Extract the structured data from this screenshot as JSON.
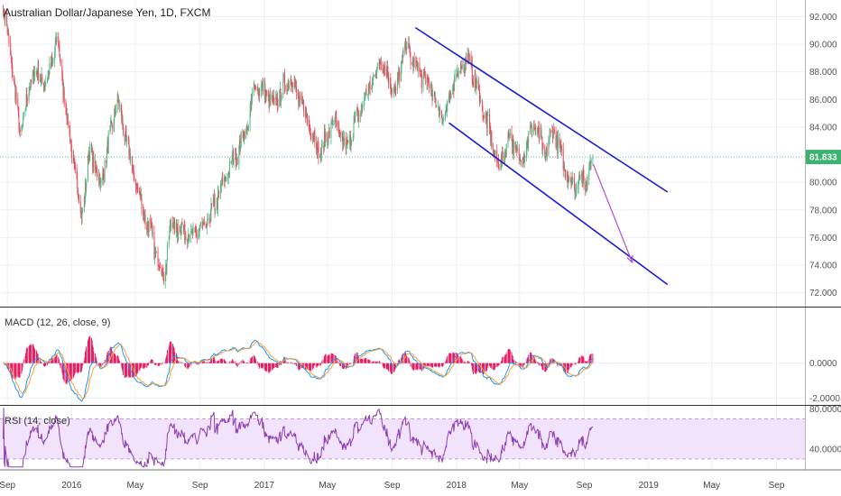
{
  "chart_data": [
    {
      "pane": "price",
      "type": "candlestick",
      "title": "Australian Dollar/Japanese Yen, 1D, FXCM",
      "ylim": [
        71.0,
        93.2
      ],
      "yticks": [
        72,
        74,
        76,
        78,
        80,
        82,
        84,
        86,
        88,
        90,
        92
      ],
      "ytick_labels": [
        "72.000",
        "74.000",
        "76.000",
        "78.000",
        "80.000",
        "84.000",
        "86.000",
        "88.000",
        "90.000",
        "92.000"
      ],
      "ytick_values": [
        72,
        74,
        76,
        78,
        80,
        84,
        86,
        88,
        90,
        92
      ],
      "last_price": 81.833,
      "last_price_label": "81.833",
      "anchors": [
        [
          "2015-08-24",
          92.6
        ],
        [
          "2015-09-08",
          89.0
        ],
        [
          "2015-09-25",
          83.5
        ],
        [
          "2015-10-20",
          88.0
        ],
        [
          "2015-11-15",
          87.2
        ],
        [
          "2015-12-05",
          90.5
        ],
        [
          "2015-12-22",
          85.0
        ],
        [
          "2016-01-20",
          77.5
        ],
        [
          "2016-02-05",
          82.5
        ],
        [
          "2016-02-25",
          79.8
        ],
        [
          "2016-03-28",
          86.0
        ],
        [
          "2016-05-01",
          80.0
        ],
        [
          "2016-06-24",
          73.0
        ],
        [
          "2016-07-08",
          77.0
        ],
        [
          "2016-08-15",
          76.2
        ],
        [
          "2016-09-12",
          76.8
        ],
        [
          "2016-10-18",
          80.2
        ],
        [
          "2016-11-30",
          84.0
        ],
        [
          "2016-12-15",
          87.0
        ],
        [
          "2017-01-20",
          85.8
        ],
        [
          "2017-02-20",
          87.5
        ],
        [
          "2017-03-25",
          84.5
        ],
        [
          "2017-04-17",
          82.0
        ],
        [
          "2017-05-12",
          84.5
        ],
        [
          "2017-06-05",
          82.5
        ],
        [
          "2017-07-10",
          86.0
        ],
        [
          "2017-08-10",
          88.8
        ],
        [
          "2017-09-08",
          86.5
        ],
        [
          "2017-09-25",
          90.0
        ],
        [
          "2017-10-15",
          88.5
        ],
        [
          "2017-11-10",
          87.0
        ],
        [
          "2017-12-05",
          84.5
        ],
        [
          "2018-01-10",
          88.5
        ],
        [
          "2018-01-25",
          89.0
        ],
        [
          "2018-02-15",
          86.0
        ],
        [
          "2018-03-23",
          81.0
        ],
        [
          "2018-04-12",
          83.5
        ],
        [
          "2018-05-02",
          81.5
        ],
        [
          "2018-05-28",
          84.2
        ],
        [
          "2018-06-18",
          82.0
        ],
        [
          "2018-07-05",
          83.8
        ],
        [
          "2018-07-25",
          81.0
        ],
        [
          "2018-08-15",
          79.5
        ],
        [
          "2018-08-22",
          80.5
        ],
        [
          "2018-09-03",
          79.6
        ],
        [
          "2018-09-12",
          81.6
        ],
        [
          "2018-09-17",
          81.833
        ]
      ],
      "channel_upper": [
        [
          "2017-10-15",
          91.2
        ],
        [
          "2019-02-06",
          79.3
        ]
      ],
      "channel_lower": [
        [
          "2017-12-18",
          84.3
        ],
        [
          "2019-02-06",
          72.6
        ]
      ],
      "projection_arrow": [
        [
          "2018-09-18",
          81.3
        ],
        [
          "2018-12-01",
          74.2
        ]
      ]
    },
    {
      "pane": "macd",
      "type": "line",
      "title": "MACD (12, 26, close, 9)",
      "ylim": [
        -2.4,
        3.2
      ],
      "ytick_labels": [
        "0.0000",
        "-2.0000"
      ],
      "ytick_values": [
        0,
        -2
      ],
      "series": [
        {
          "type": "line",
          "values": []
        },
        {
          "type": "line",
          "values": []
        },
        {
          "type": "histogram",
          "values": []
        }
      ]
    },
    {
      "pane": "rsi",
      "type": "line",
      "title": "RSI (14, close)",
      "ylim": [
        20,
        83
      ],
      "band": [
        30,
        70
      ],
      "ytick_labels": [
        "80.0000",
        "40.0000"
      ],
      "ytick_values": [
        80,
        40
      ]
    }
  ],
  "x_axis": {
    "range": [
      "2015-08-18",
      "2019-10-25"
    ],
    "ticks": [
      {
        "date": "2015-09-01",
        "label": "Sep"
      },
      {
        "date": "2016-01-01",
        "label": "2016"
      },
      {
        "date": "2016-05-01",
        "label": "May"
      },
      {
        "date": "2016-09-01",
        "label": "Sep"
      },
      {
        "date": "2017-01-01",
        "label": "2017"
      },
      {
        "date": "2017-05-01",
        "label": "May"
      },
      {
        "date": "2017-09-01",
        "label": "Sep"
      },
      {
        "date": "2018-01-01",
        "label": "2018"
      },
      {
        "date": "2018-05-01",
        "label": "May"
      },
      {
        "date": "2018-09-01",
        "label": "Sep"
      },
      {
        "date": "2019-01-01",
        "label": "2019"
      },
      {
        "date": "2019-05-01",
        "label": "May"
      },
      {
        "date": "2019-09-01",
        "label": "Sep"
      }
    ],
    "data_end": "2018-09-17"
  },
  "colors": {
    "background": "#ffffff",
    "grid": "#ebeff3",
    "up_candle": "#53b987",
    "down_candle": "#eb4d5c",
    "channel": "#1a1ad6",
    "arrow": "#b44fd8",
    "macd_line": "#2196f3",
    "signal_line": "#f5a23a",
    "histogram": "#e91e63",
    "rsi_line": "#8e3fb3",
    "rsi_band": "#f1e3fb",
    "rsi_band_border": "#c59bd8",
    "price_tag": "#3cb371",
    "price_line": "#4aa39a",
    "pane_separator": "#333333"
  }
}
